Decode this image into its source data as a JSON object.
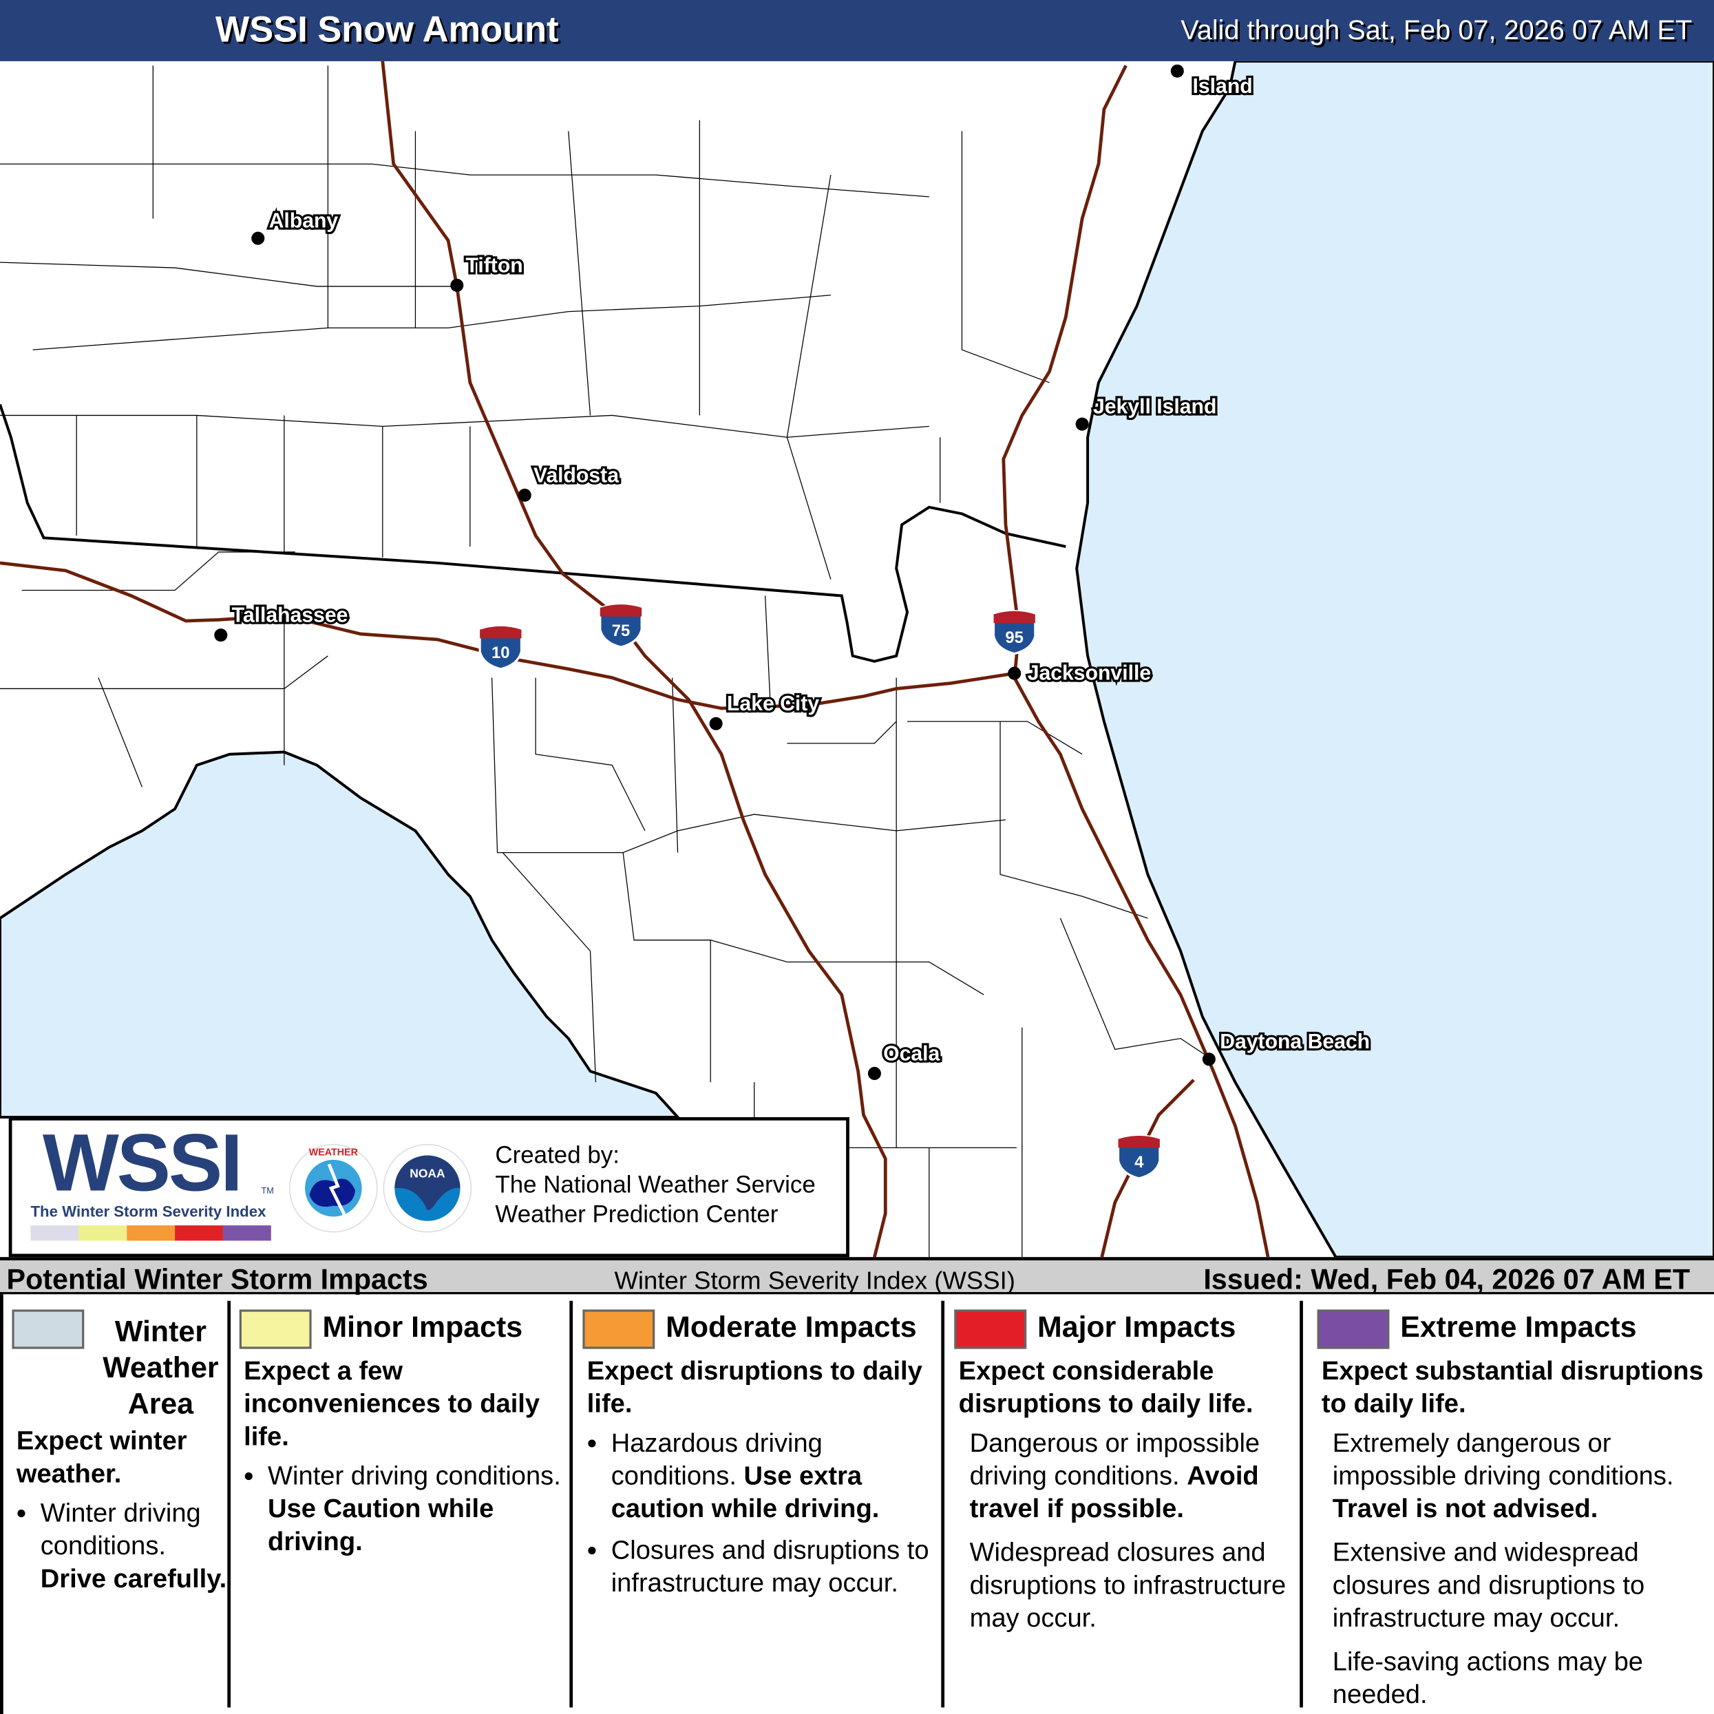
{
  "header": {
    "title": "WSSI Snow Amount",
    "valid": "Valid through Sat, Feb 07, 2026 07 AM ET"
  },
  "map": {
    "colors": {
      "ocean": "#dbeefc",
      "land": "#ffffff",
      "interstate": "#6b1f0a",
      "shield_blue": "#1e4f95",
      "shield_red": "#b4202a"
    },
    "cities": [
      {
        "name": "Albany"
      },
      {
        "name": "Tifton"
      },
      {
        "name": "Valdosta"
      },
      {
        "name": "Tallahassee"
      },
      {
        "name": "Lake City"
      },
      {
        "name": "Jacksonville"
      },
      {
        "name": "Jekyll Island"
      },
      {
        "name": "Ocala"
      },
      {
        "name": "Daytona Beach"
      },
      {
        "name": "Island"
      }
    ],
    "interstates": [
      "10",
      "75",
      "95",
      "4"
    ]
  },
  "logo": {
    "wssi": "WSSI",
    "tm": "TM",
    "subtitle": "The Winter Storm Severity Index",
    "bar_colors": [
      "#dcdcea",
      "#eef08e",
      "#f59a35",
      "#e02226",
      "#7d55a8"
    ],
    "nws": "NATIONAL WEATHER SERVICE",
    "noaa": "NOAA",
    "created": [
      "Created by:",
      "The National Weather Service",
      "Weather Prediction Center"
    ]
  },
  "infobar": {
    "left": "Potential Winter Storm Impacts",
    "middle": "Winter Storm Severity Index (WSSI)",
    "right": "Issued: Wed, Feb 04, 2026 07 AM ET"
  },
  "legend": [
    {
      "color": "#cfdbe3",
      "title": "Winter Weather Area",
      "expect": "Expect winter weather.",
      "bullets": [
        [
          "Winter driving conditions. ",
          "Drive carefully."
        ]
      ]
    },
    {
      "color": "#f7f4a0",
      "title": "Minor Impacts",
      "expect": "Expect a few inconveniences to daily life.",
      "bullets": [
        [
          "Winter driving conditions. ",
          "Use Caution while driving."
        ]
      ]
    },
    {
      "color": "#f59a35",
      "title": "Moderate Impacts",
      "expect": "Expect disruptions to daily life.",
      "bullets": [
        [
          "Hazardous driving conditions. ",
          "Use extra caution while driving."
        ],
        [
          "Closures and disruptions to infrastructure may occur.",
          ""
        ]
      ]
    },
    {
      "color": "#e31e26",
      "title": "Major Impacts",
      "expect": "Expect considerable disruptions to daily life.",
      "paras": [
        [
          "Dangerous or impossible driving conditions. ",
          "Avoid travel if possible."
        ],
        [
          "Widespread closures and disruptions to infrastructure may occur.",
          ""
        ]
      ]
    },
    {
      "color": "#7a4fa3",
      "title": "Extreme Impacts",
      "expect": "Expect substantial disruptions to daily life.",
      "paras": [
        [
          "Extremely dangerous or impossible driving conditions. ",
          "Travel is not advised."
        ],
        [
          "Extensive and widespread closures and disruptions to infrastructure may occur.",
          ""
        ],
        [
          "Life-saving actions may be needed.",
          ""
        ]
      ]
    }
  ]
}
